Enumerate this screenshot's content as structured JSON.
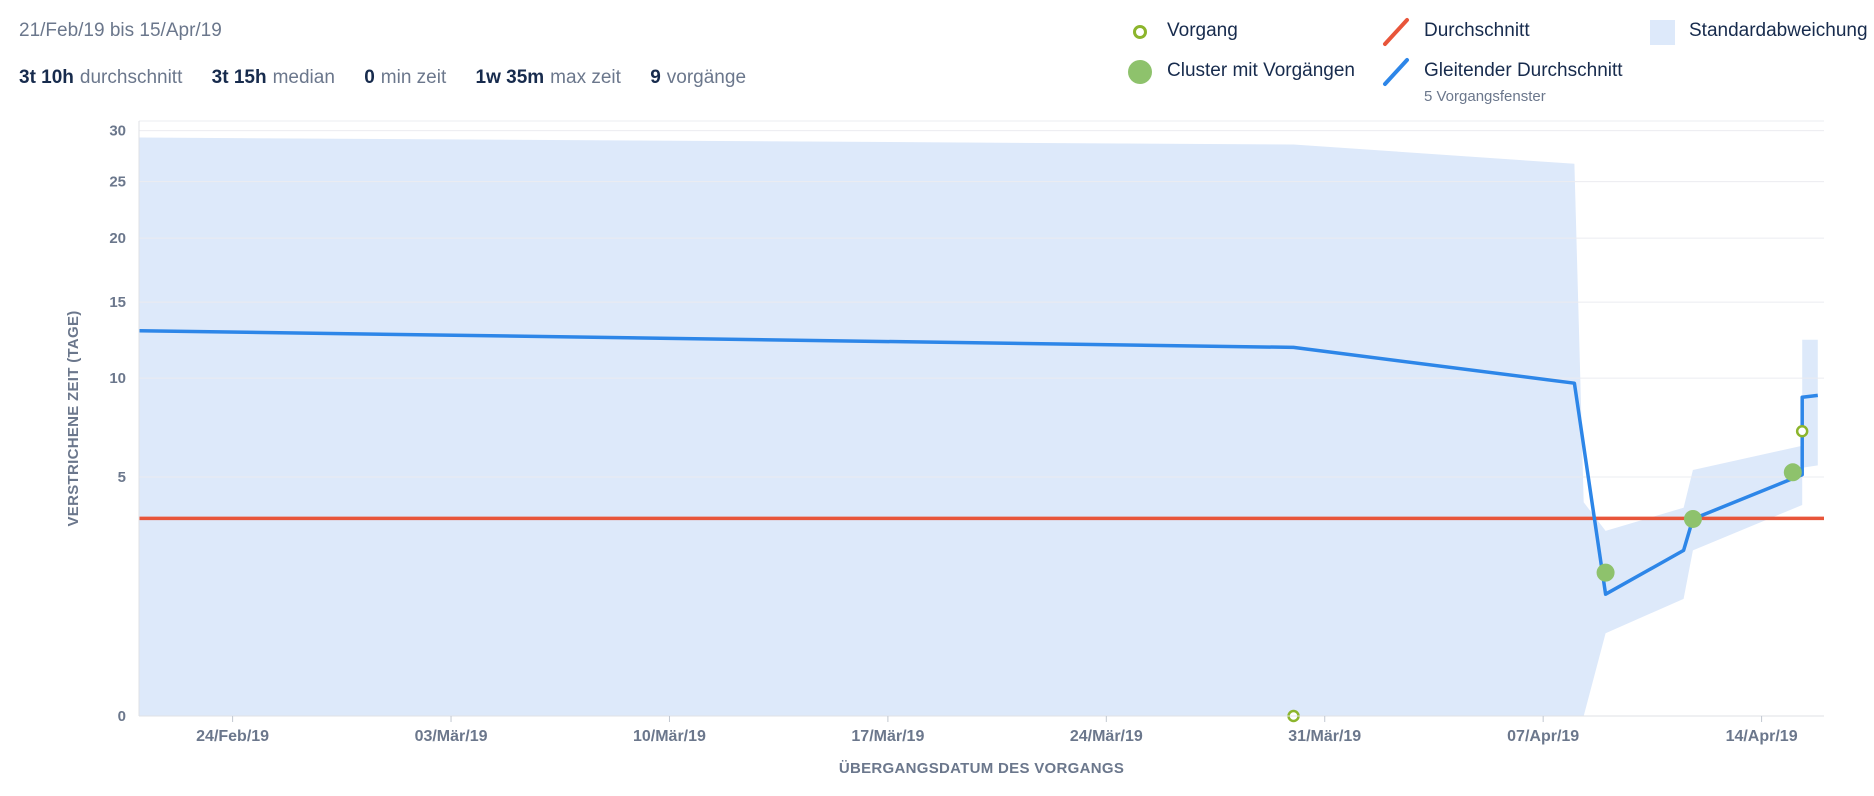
{
  "header": {
    "date_range": "21/Feb/19 bis 15/Apr/19",
    "stats": [
      {
        "value": "3t 10h",
        "label": "durchschnitt"
      },
      {
        "value": "3t 15h",
        "label": "median"
      },
      {
        "value": "0",
        "label": "min zeit"
      },
      {
        "value": "1w 35m",
        "label": "max zeit"
      },
      {
        "value": "9",
        "label": "vorgänge"
      }
    ]
  },
  "legend": {
    "issue": "Vorgang",
    "cluster": "Cluster mit Vorgängen",
    "average": "Durchschnitt",
    "rolling": "Gleitender Durchschnitt",
    "rolling_sub": "5 Vorgangsfenster",
    "stddev": "Standardabweichung"
  },
  "colors": {
    "average": "#e8553a",
    "rolling": "#2d86e8",
    "stddev": "#dde9fa",
    "issue": "#8cb52c",
    "cluster": "#8ec26c",
    "grid": "#ebecf0",
    "axis_text": "#6b778c"
  },
  "chart_data": {
    "type": "scatter",
    "xlabel": "ÜBERGANGSDATUM DES VORGANGS",
    "ylabel": "VERSTRICHENE ZEIT (TAGE)",
    "x_scale": "date",
    "y_scale": "sqrt",
    "xlim": [
      "2019-02-21",
      "2019-04-16"
    ],
    "ylim": [
      0,
      31
    ],
    "x_ticks": [
      {
        "date": "2019-02-24",
        "label": "24/Feb/19"
      },
      {
        "date": "2019-03-03",
        "label": "03/Mär/19"
      },
      {
        "date": "2019-03-10",
        "label": "10/Mär/19"
      },
      {
        "date": "2019-03-17",
        "label": "17/Mär/19"
      },
      {
        "date": "2019-03-24",
        "label": "24/Mär/19"
      },
      {
        "date": "2019-03-31",
        "label": "31/Mär/19"
      },
      {
        "date": "2019-04-07",
        "label": "07/Apr/19"
      },
      {
        "date": "2019-04-14",
        "label": "14/Apr/19"
      }
    ],
    "y_ticks": [
      0,
      5,
      10,
      15,
      20,
      25,
      30
    ],
    "average": 3.42,
    "rolling_average": [
      {
        "x": "2019-02-21",
        "y": 13.0
      },
      {
        "x": "2019-03-30",
        "y": 11.9
      },
      {
        "x": "2019-04-08",
        "y": 9.7
      },
      {
        "x": "2019-04-09",
        "y": 1.3
      },
      {
        "x": "2019-04-11.5",
        "y": 2.4
      },
      {
        "x": "2019-04-11.8",
        "y": 3.4
      },
      {
        "x": "2019-04-15.3",
        "y": 5.1
      },
      {
        "x": "2019-04-15.3",
        "y": 8.9
      },
      {
        "x": "2019-04-15.8",
        "y": 9.0
      }
    ],
    "stddev_band": [
      {
        "x": "2019-02-21",
        "upper": 29.3,
        "lower": 0
      },
      {
        "x": "2019-03-30",
        "upper": 28.6,
        "lower": 0
      },
      {
        "x": "2019-04-08",
        "upper": 26.7,
        "lower": 0
      },
      {
        "x": "2019-04-08.3",
        "upper": 4.0,
        "lower": 0
      },
      {
        "x": "2019-04-09",
        "upper": 3.0,
        "lower": 0.6
      },
      {
        "x": "2019-04-11.5",
        "upper": 3.8,
        "lower": 1.2
      },
      {
        "x": "2019-04-11.8",
        "upper": 5.3,
        "lower": 2.4
      },
      {
        "x": "2019-04-15.3",
        "upper": 6.4,
        "lower": 3.9
      },
      {
        "x": "2019-04-15.3",
        "upper": 12.4,
        "lower": 5.4
      },
      {
        "x": "2019-04-15.8",
        "upper": 12.4,
        "lower": 5.5
      }
    ],
    "issues": [
      {
        "x": "2019-03-30",
        "y": 0
      },
      {
        "x": "2019-04-15.3",
        "y": 7.1
      }
    ],
    "clusters": [
      {
        "x": "2019-04-09",
        "y": 1.8
      },
      {
        "x": "2019-04-11.8",
        "y": 3.4
      },
      {
        "x": "2019-04-15",
        "y": 5.2
      }
    ]
  }
}
